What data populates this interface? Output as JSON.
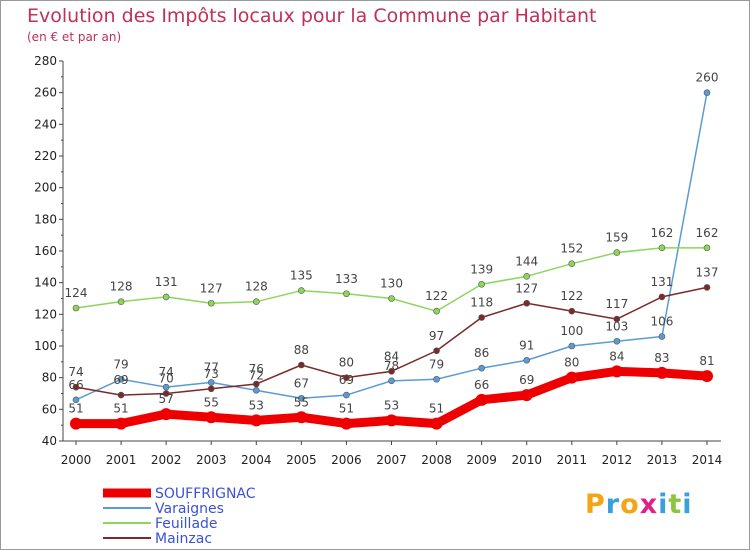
{
  "header": {
    "title": "Evolution des Impôts locaux pour la Commune par Habitant",
    "subtitle": "(en € et par an)"
  },
  "logo": {
    "letters": [
      "P",
      "r",
      "o",
      "x",
      "i",
      "t",
      "i"
    ],
    "colors": [
      "#f2a516",
      "#3aa0dc",
      "#f2a516",
      "#e0218a",
      "#3aa0dc",
      "#8cc63f",
      "#3aa0dc"
    ]
  },
  "chart_data": {
    "type": "line",
    "x": [
      "2000",
      "2001",
      "2002",
      "2003",
      "2004",
      "2005",
      "2006",
      "2007",
      "2008",
      "2009",
      "2010",
      "2011",
      "2012",
      "2013",
      "2014"
    ],
    "ylim": [
      40,
      280
    ],
    "yticks": [
      "40",
      "60",
      "80",
      "100",
      "120",
      "140",
      "160",
      "180",
      "200",
      "220",
      "240",
      "260",
      "280"
    ],
    "grid": false,
    "legend_position": "bottom-left",
    "series": [
      {
        "name": "SOUFFRIGNAC",
        "color": "#ee0000",
        "values": [
          51,
          51,
          57,
          55,
          53,
          55,
          51,
          53,
          51,
          66,
          69,
          80,
          84,
          83,
          81
        ]
      },
      {
        "name": "Varaignes",
        "color": "#5b9bd5",
        "values": [
          66,
          79,
          74,
          77,
          72,
          67,
          69,
          78,
          79,
          86,
          91,
          100,
          103,
          106,
          260
        ]
      },
      {
        "name": "Feuillade",
        "color": "#8cd65a",
        "values": [
          124,
          128,
          131,
          127,
          128,
          135,
          133,
          130,
          122,
          139,
          144,
          152,
          159,
          162,
          162
        ]
      },
      {
        "name": "Mainzac",
        "color": "#7a2a2a",
        "values": [
          74,
          69,
          70,
          73,
          76,
          88,
          80,
          84,
          97,
          118,
          127,
          122,
          117,
          131,
          137
        ]
      }
    ]
  }
}
